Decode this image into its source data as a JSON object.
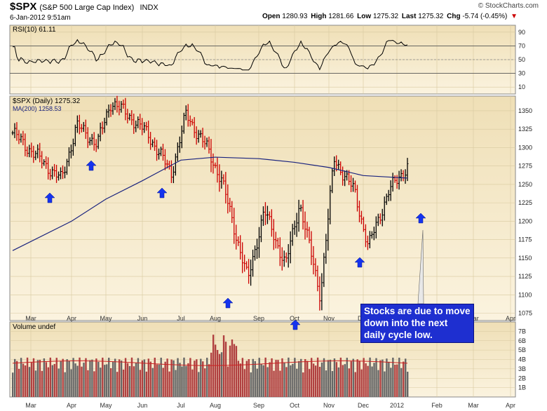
{
  "header": {
    "symbol": "$SPX",
    "name": "(S&P 500 Large Cap Index)",
    "exchange": "INDX",
    "datetime": "6-Jan-2012 9:51am",
    "brand": "© StockCharts.com",
    "open_label": "Open",
    "open": "1280.93",
    "high_label": "High",
    "high": "1281.66",
    "low_label": "Low",
    "low": "1275.32",
    "last_label": "Last",
    "last": "1275.32",
    "chg_label": "Chg",
    "chg": "-5.74 (-0.45%)",
    "chg_marker": "▼"
  },
  "colors": {
    "panel_bg": "#f5e8c6",
    "panel_bg_top": "#eedfb6",
    "up": "#000000",
    "down": "#cc0000",
    "ma": "#1a237e",
    "arrow": "#1533ee",
    "volume": "#b04040",
    "callout_bg": "#1e2fd0"
  },
  "annotation": {
    "callout_text": "Stocks are due to move down into the next daily cycle low.",
    "arrow_icons": [
      "arrow-up-icon"
    ]
  },
  "chart_data": [
    {
      "panel": "rsi",
      "type": "line",
      "title": "RSI(10) 61.11",
      "ylim": [
        0,
        100
      ],
      "yticks": [
        10,
        30,
        50,
        70,
        90
      ],
      "reference_lines": [
        30,
        70
      ],
      "last": 61.11
    },
    {
      "panel": "price",
      "type": "bar",
      "title": "$SPX (Daily) 1275.32",
      "legend": [
        "MA(200) 1258.53"
      ],
      "ylim": [
        1065,
        1370
      ],
      "yticks": [
        1075,
        1100,
        1125,
        1150,
        1175,
        1200,
        1225,
        1250,
        1275,
        1300,
        1325,
        1350
      ],
      "x_tick_labels": [
        "Mar",
        "Apr",
        "May",
        "Jun",
        "Jul",
        "Aug",
        "Sep",
        "Oct",
        "Nov",
        "Dec",
        "2012",
        "Feb",
        "Mar",
        "Apr"
      ],
      "series": [
        {
          "name": "$SPX (Daily)",
          "x": [
            "Mar",
            "Mar",
            "Apr",
            "Apr",
            "May",
            "May",
            "Jun",
            "Jun",
            "Jul",
            "Jul",
            "Aug",
            "Aug",
            "Sep",
            "Sep",
            "Oct",
            "Oct",
            "Nov",
            "Nov",
            "Dec",
            "Dec",
            "2012"
          ],
          "values": [
            1320,
            1256,
            1330,
            1305,
            1363,
            1338,
            1318,
            1265,
            1345,
            1300,
            1255,
            1120,
            1215,
            1140,
            1225,
            1099,
            1285,
            1240,
            1165,
            1240,
            1275
          ]
        },
        {
          "name": "MA(200) 1258.53",
          "x": [
            "Mar",
            "Apr",
            "May",
            "Jun",
            "Jul",
            "Aug",
            "Sep",
            "Oct",
            "Nov",
            "Dec",
            "2012"
          ],
          "values": [
            1160,
            1200,
            1230,
            1255,
            1283,
            1287,
            1285,
            1280,
            1273,
            1262,
            1258.53
          ]
        }
      ]
    },
    {
      "panel": "volume",
      "type": "bar",
      "title": "Volume undef",
      "ylim": [
        0,
        8
      ],
      "y_tick_labels": [
        "1B",
        "2B",
        "3B",
        "4B",
        "5B",
        "6B",
        "7B"
      ]
    }
  ]
}
